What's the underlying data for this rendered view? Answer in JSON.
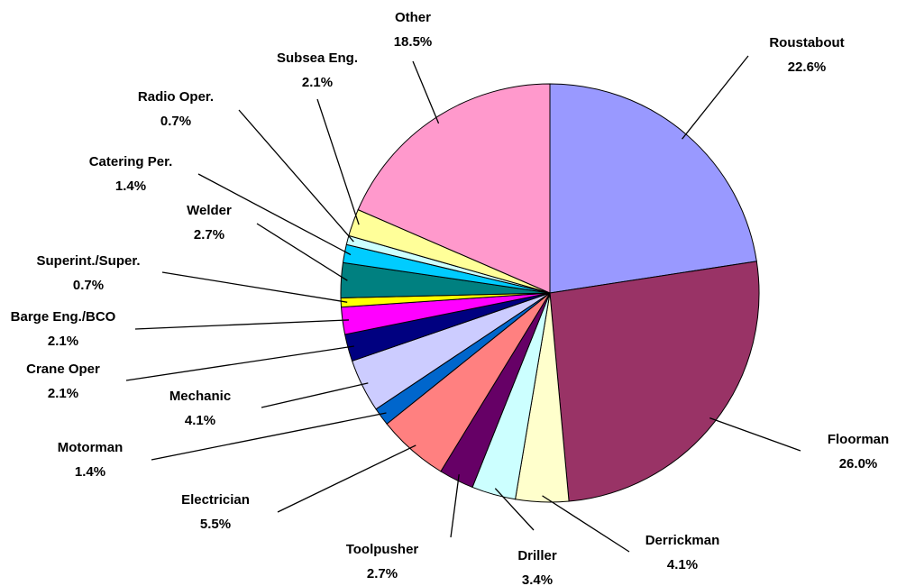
{
  "chart_data": {
    "type": "pie",
    "categories": [
      "Roustabout",
      "Floorman",
      "Derrickman",
      "Driller",
      "Toolpusher",
      "Electrician",
      "Motorman",
      "Mechanic",
      "Crane Oper",
      "Barge Eng./BCO",
      "Superint./Super.",
      "Welder",
      "Catering Per.",
      "Radio Oper.",
      "Subsea Eng.",
      "Other"
    ],
    "values": [
      22.6,
      26.0,
      4.1,
      3.4,
      2.7,
      5.5,
      1.4,
      4.1,
      2.1,
      2.1,
      0.7,
      2.7,
      1.4,
      0.7,
      2.1,
      18.5
    ],
    "value_labels": [
      "22.6%",
      "26.0%",
      "4.1%",
      "3.4%",
      "2.7%",
      "5.5%",
      "1.4%",
      "4.1%",
      "2.1%",
      "2.1%",
      "0.7%",
      "2.7%",
      "1.4%",
      "0.7%",
      "2.1%",
      "18.5%"
    ],
    "colors": [
      "#9999ff",
      "#993366",
      "#ffffcc",
      "#ccffff",
      "#660066",
      "#ff8080",
      "#0066cc",
      "#ccccff",
      "#000080",
      "#ff00ff",
      "#ffff00",
      "#008080",
      "#00ccff",
      "#ccffff",
      "#ffff99",
      "#ff99cc"
    ]
  }
}
